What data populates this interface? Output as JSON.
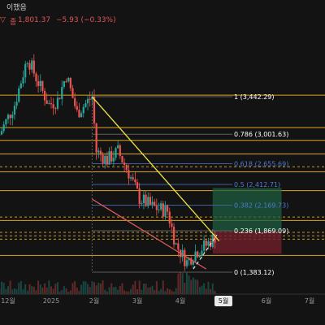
{
  "header": {
    "trade_text": "이했음",
    "price_prefix": "종",
    "price": "1,801.37",
    "change": "−5.93 (−0.33%)"
  },
  "colors": {
    "background": "#131313",
    "horizontal_level": "#e0a326",
    "dashed_level": "#c9962a",
    "fib_line": "#5e5e5e",
    "fib_blue_text": "#4f79d6",
    "fib_white_text": "#ffffff",
    "up_candle": "#26a69a",
    "down_candle": "#ef5350",
    "channel_upper": "#f0e442",
    "channel_lower": "#e05a5a",
    "target_box": "#1e5e3f",
    "stop_box": "#6e1f2c",
    "change_text": "#e2555a"
  },
  "chart_data": {
    "type": "candlestick",
    "title": "",
    "x_ticks": [
      "12월",
      "2025",
      "2월",
      "3월",
      "4월",
      "5월",
      "6월",
      "7월"
    ],
    "fib_levels": [
      {
        "ratio": "1",
        "value": 3442.29,
        "label": "1 (3,442.29)",
        "label_color": "white"
      },
      {
        "ratio": "0.786",
        "value": 3001.63,
        "label": "0.786 (3,001.63)",
        "label_color": "white"
      },
      {
        "ratio": "0.618",
        "value": 2655.69,
        "label": "0.618 (2,655.69)",
        "label_color": "blue"
      },
      {
        "ratio": "0.5",
        "value": 2412.71,
        "label": "0.5 (2,412.71)",
        "label_color": "blue"
      },
      {
        "ratio": "0.382",
        "value": 2169.73,
        "label": "0.382 (2,169.73)",
        "label_color": "blue"
      },
      {
        "ratio": "0.236",
        "value": 1869.09,
        "label": "0.236 (1,869.09)",
        "label_color": "white"
      },
      {
        "ratio": "0",
        "value": 1383.12,
        "label": "0 (1,383.12)",
        "label_color": "white"
      }
    ],
    "horizontal_levels_solid": [
      3460,
      3080,
      2930,
      2770,
      2560,
      2340,
      1990,
      1580
    ],
    "horizontal_levels_dashed": [
      2620,
      2030,
      1850,
      1810,
      1770
    ],
    "last_price": 1801.37,
    "price_range": [
      1300,
      3950
    ],
    "falling_wedge": {
      "upper_start": {
        "month": 1.95,
        "price": 3442
      },
      "upper_end": {
        "month": 4.9,
        "price": 1750
      },
      "lower_start": {
        "month": 1.95,
        "price": 2240
      },
      "lower_end": {
        "month": 4.6,
        "price": 1420
      }
    },
    "position_box": {
      "entry": 1860,
      "target": 2370,
      "stop": 1600,
      "start_month": 4.75,
      "end_month": 6.35
    }
  }
}
